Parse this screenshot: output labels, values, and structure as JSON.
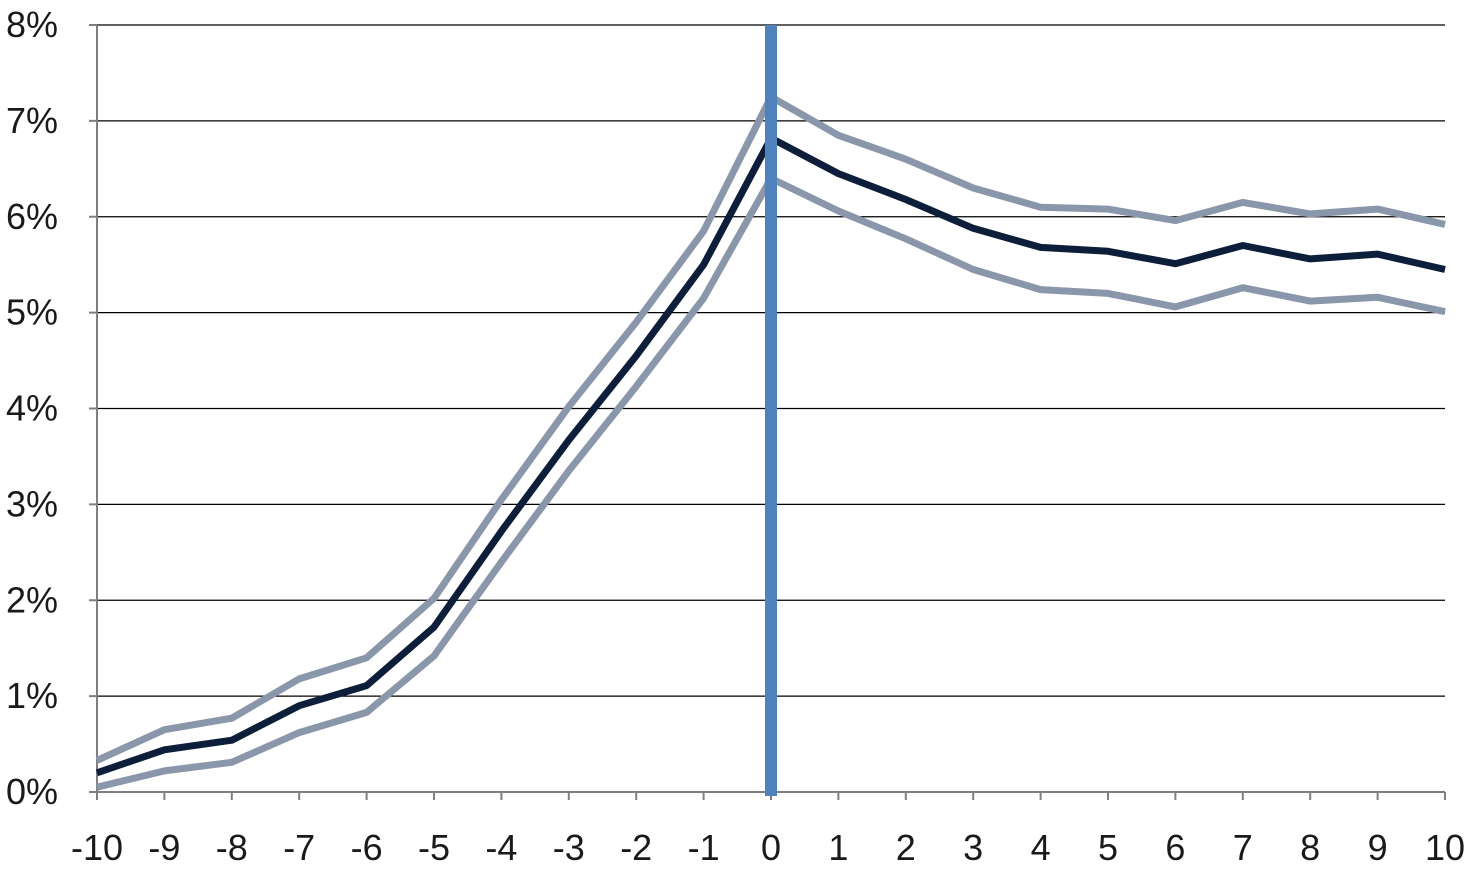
{
  "chart_data": {
    "type": "line",
    "title": "",
    "xlabel": "",
    "ylabel": "",
    "x": [
      -10,
      -9,
      -8,
      -7,
      -6,
      -5,
      -4,
      -3,
      -2,
      -1,
      0,
      1,
      2,
      3,
      4,
      5,
      6,
      7,
      8,
      9,
      10
    ],
    "x_tick_labels": [
      "-10",
      "-9",
      "-8",
      "-7",
      "-6",
      "-5",
      "-4",
      "-3",
      "-2",
      "-1",
      "0",
      "1",
      "2",
      "3",
      "4",
      "5",
      "6",
      "7",
      "8",
      "9",
      "10"
    ],
    "y_tick_labels": [
      "0%",
      "1%",
      "2%",
      "3%",
      "4%",
      "5%",
      "6%",
      "7%",
      "8%"
    ],
    "ylim": [
      0,
      8
    ],
    "y_unit": "%",
    "grid": "horizontal",
    "legend": "none",
    "series": [
      {
        "role": "upper-bound",
        "color": "#8a97ab",
        "values": [
          0.33,
          0.65,
          0.77,
          1.18,
          1.4,
          2.02,
          3.05,
          4.02,
          4.9,
          5.85,
          7.25,
          6.85,
          6.6,
          6.3,
          6.1,
          6.08,
          5.96,
          6.15,
          6.03,
          6.08,
          5.92
        ]
      },
      {
        "role": "estimate",
        "color": "#0d1e3a",
        "values": [
          0.2,
          0.44,
          0.54,
          0.9,
          1.11,
          1.72,
          2.72,
          3.67,
          4.55,
          5.5,
          6.82,
          6.45,
          6.18,
          5.88,
          5.68,
          5.64,
          5.51,
          5.7,
          5.56,
          5.61,
          5.45
        ]
      },
      {
        "role": "lower-bound",
        "color": "#8a97ab",
        "values": [
          0.05,
          0.22,
          0.31,
          0.62,
          0.83,
          1.42,
          2.4,
          3.35,
          4.23,
          5.15,
          6.4,
          6.06,
          5.77,
          5.45,
          5.24,
          5.2,
          5.06,
          5.26,
          5.12,
          5.16,
          5.01
        ]
      }
    ],
    "reference_line": {
      "x": 0,
      "color": "#4f81bd"
    },
    "colors": {
      "gridline": "#000000",
      "axis": "#7f7f7f"
    }
  }
}
